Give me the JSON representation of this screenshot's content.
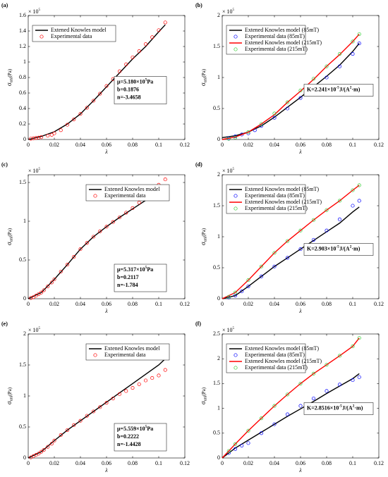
{
  "chart_data": [
    {
      "type": "line",
      "panel": "(a)",
      "xlabel": "λ",
      "ylabel": {
        "main": "σ",
        "sub": "uni",
        "unit": "(Pa)"
      },
      "multiplier": {
        "base": "× 10",
        "exp": "5"
      },
      "xlim": [
        0,
        0.12
      ],
      "xticks": [
        0,
        0.02,
        0.04,
        0.06,
        0.08,
        0.1,
        0.12
      ],
      "ylim": [
        0,
        1.6
      ],
      "yticks": [
        0,
        0.2,
        0.4,
        0.6,
        0.8,
        1,
        1.2,
        1.4,
        1.6
      ],
      "legend": "upper left",
      "annotation_loc": "center right",
      "annotation": [
        [
          {
            "t": "μ=5.180×10"
          },
          {
            "t": "5",
            "sup": true
          },
          {
            "t": "Pa"
          }
        ],
        [
          {
            "t": "b=0.1876"
          }
        ],
        [
          {
            "t": "n=-3.4658"
          }
        ]
      ],
      "series": [
        {
          "name": "Extened Knowles model",
          "style": "line",
          "color": "#000000",
          "x": [
            0,
            0.01,
            0.02,
            0.03,
            0.04,
            0.05,
            0.06,
            0.07,
            0.08,
            0.09,
            0.1,
            0.105
          ],
          "values": [
            0,
            0.04,
            0.1,
            0.2,
            0.33,
            0.5,
            0.68,
            0.86,
            1.04,
            1.2,
            1.39,
            1.48
          ]
        },
        {
          "name": "Experimental data",
          "style": "marker",
          "color": "#ff0000",
          "x": [
            0.002,
            0.004,
            0.006,
            0.008,
            0.01,
            0.015,
            0.018,
            0.02,
            0.025,
            0.03,
            0.035,
            0.04,
            0.045,
            0.05,
            0.055,
            0.06,
            0.065,
            0.07,
            0.075,
            0.08,
            0.085,
            0.09,
            0.095,
            0.1,
            0.105
          ],
          "values": [
            0.01,
            0.015,
            0.02,
            0.025,
            0.03,
            0.05,
            0.06,
            0.08,
            0.12,
            0.19,
            0.26,
            0.33,
            0.41,
            0.5,
            0.59,
            0.69,
            0.78,
            0.88,
            0.97,
            1.06,
            1.14,
            1.23,
            1.32,
            1.41,
            1.51
          ]
        }
      ]
    },
    {
      "type": "line",
      "panel": "(b)",
      "xlabel": "λ",
      "ylabel": {
        "main": "σ",
        "sub": "uni",
        "unit": "(Pa)"
      },
      "multiplier": {
        "base": "× 10",
        "exp": "5"
      },
      "xlim": [
        0,
        0.12
      ],
      "xticks": [
        0,
        0.02,
        0.04,
        0.06,
        0.08,
        0.1,
        0.12
      ],
      "ylim": [
        0,
        2
      ],
      "yticks": [
        0,
        0.5,
        1,
        1.5,
        2
      ],
      "legend": "upper left",
      "annotation_loc": "center right",
      "annotation": [
        [
          {
            "t": "K=2.241×10"
          },
          {
            "t": "-5",
            "sup": true
          },
          {
            "t": "J/(A"
          },
          {
            "t": "2",
            "sup": true
          },
          {
            "t": "·m)"
          }
        ]
      ],
      "series": [
        {
          "name": "Extened Knowles model (85mT)",
          "style": "line",
          "color": "#000000",
          "x": [
            0,
            0.01,
            0.02,
            0.03,
            0.04,
            0.05,
            0.06,
            0.07,
            0.08,
            0.09,
            0.1,
            0.105
          ],
          "values": [
            0.03,
            0.06,
            0.12,
            0.22,
            0.36,
            0.52,
            0.68,
            0.85,
            1.02,
            1.2,
            1.42,
            1.55
          ]
        },
        {
          "name": "Experimental data (85mT)",
          "style": "marker",
          "color": "#0000ff",
          "x": [
            0.005,
            0.01,
            0.015,
            0.02,
            0.025,
            0.03,
            0.04,
            0.05,
            0.06,
            0.07,
            0.08,
            0.09,
            0.1,
            0.105
          ],
          "values": [
            0.02,
            0.05,
            0.08,
            0.1,
            0.15,
            0.22,
            0.35,
            0.5,
            0.67,
            0.84,
            1.0,
            1.18,
            1.38,
            1.55
          ]
        },
        {
          "name": "Extened Knowles model (215mT)",
          "style": "line",
          "color": "#ff0000",
          "x": [
            0,
            0.01,
            0.02,
            0.03,
            0.04,
            0.05,
            0.06,
            0.07,
            0.08,
            0.09,
            0.1,
            0.105
          ],
          "values": [
            0,
            0.04,
            0.12,
            0.25,
            0.4,
            0.6,
            0.78,
            0.97,
            1.18,
            1.37,
            1.58,
            1.7
          ]
        },
        {
          "name": "Experimental data (215mT)",
          "style": "marker",
          "color": "#33cc33",
          "x": [
            0.005,
            0.01,
            0.02,
            0.03,
            0.04,
            0.05,
            0.06,
            0.07,
            0.08,
            0.09,
            0.1,
            0.105
          ],
          "values": [
            0.01,
            0.03,
            0.12,
            0.25,
            0.42,
            0.6,
            0.79,
            0.98,
            1.18,
            1.38,
            1.58,
            1.7
          ]
        }
      ]
    },
    {
      "type": "line",
      "panel": "(c)",
      "xlabel": "λ",
      "ylabel": {
        "main": "σ",
        "sub": "uni",
        "unit": "(Pa)"
      },
      "multiplier": {
        "base": "× 10",
        "exp": "5"
      },
      "xlim": [
        0,
        0.12
      ],
      "xticks": [
        0,
        0.02,
        0.04,
        0.06,
        0.08,
        0.1,
        0.12
      ],
      "ylim": [
        0,
        1.6
      ],
      "yticks": [
        0,
        0.5,
        1,
        1.5
      ],
      "legend": "upper right",
      "annotation_loc": "lower right",
      "annotation": [
        [
          {
            "t": "μ=5.317×10"
          },
          {
            "t": "5",
            "sup": true
          },
          {
            "t": "Pa"
          }
        ],
        [
          {
            "t": "b=0.2117"
          }
        ],
        [
          {
            "t": "n=-1.784"
          }
        ]
      ],
      "series": [
        {
          "name": "Extened Knowles model",
          "style": "line",
          "color": "#000000",
          "x": [
            0,
            0.01,
            0.02,
            0.03,
            0.04,
            0.05,
            0.06,
            0.07,
            0.08,
            0.09,
            0.1,
            0.105
          ],
          "values": [
            0,
            0.08,
            0.25,
            0.44,
            0.64,
            0.8,
            0.93,
            1.05,
            1.16,
            1.27,
            1.38,
            1.43
          ]
        },
        {
          "name": "Experimental data",
          "style": "marker",
          "color": "#ff0000",
          "x": [
            0.002,
            0.004,
            0.006,
            0.008,
            0.01,
            0.012,
            0.015,
            0.018,
            0.02,
            0.025,
            0.03,
            0.035,
            0.04,
            0.045,
            0.05,
            0.055,
            0.06,
            0.065,
            0.07,
            0.075,
            0.08,
            0.085,
            0.09,
            0.095,
            0.1,
            0.105
          ],
          "values": [
            0.01,
            0.02,
            0.04,
            0.06,
            0.08,
            0.11,
            0.16,
            0.21,
            0.25,
            0.35,
            0.44,
            0.54,
            0.64,
            0.72,
            0.8,
            0.87,
            0.93,
            0.99,
            1.05,
            1.11,
            1.17,
            1.24,
            1.32,
            1.4,
            1.47,
            1.54
          ]
        }
      ]
    },
    {
      "type": "line",
      "panel": "(d)",
      "xlabel": "λ",
      "ylabel": {
        "main": "σ",
        "sub": "uni",
        "unit": "(Pa)"
      },
      "multiplier": {
        "base": "× 10",
        "exp": "5"
      },
      "xlim": [
        0,
        0.12
      ],
      "xticks": [
        0,
        0.02,
        0.04,
        0.06,
        0.08,
        0.1,
        0.12
      ],
      "ylim": [
        0,
        2
      ],
      "yticks": [
        0,
        0.5,
        1,
        1.5,
        2
      ],
      "legend": "upper left",
      "annotation_loc": "center right",
      "annotation": [
        [
          {
            "t": "K=2.903×10"
          },
          {
            "t": "-5",
            "sup": true
          },
          {
            "t": "J/(A"
          },
          {
            "t": "2",
            "sup": true
          },
          {
            "t": "·m)"
          }
        ]
      ],
      "series": [
        {
          "name": "Extened Knowles model (85mT)",
          "style": "line",
          "color": "#000000",
          "x": [
            0,
            0.01,
            0.02,
            0.03,
            0.04,
            0.05,
            0.06,
            0.07,
            0.08,
            0.09,
            0.1,
            0.105
          ],
          "values": [
            0,
            0.05,
            0.2,
            0.36,
            0.52,
            0.66,
            0.8,
            0.94,
            1.08,
            1.22,
            1.4,
            1.48
          ]
        },
        {
          "name": "Experimental data (85mT)",
          "style": "marker",
          "color": "#0000ff",
          "x": [
            0.005,
            0.01,
            0.015,
            0.02,
            0.03,
            0.04,
            0.05,
            0.06,
            0.07,
            0.08,
            0.09,
            0.1,
            0.105
          ],
          "values": [
            0.02,
            0.05,
            0.12,
            0.2,
            0.36,
            0.52,
            0.66,
            0.8,
            0.95,
            1.1,
            1.28,
            1.5,
            1.58
          ]
        },
        {
          "name": "Extened Knowles model (215mT)",
          "style": "line",
          "color": "#ff0000",
          "x": [
            0,
            0.01,
            0.02,
            0.03,
            0.04,
            0.05,
            0.06,
            0.07,
            0.08,
            0.09,
            0.1,
            0.105
          ],
          "values": [
            0,
            0.1,
            0.3,
            0.52,
            0.74,
            0.93,
            1.1,
            1.27,
            1.43,
            1.58,
            1.75,
            1.83
          ]
        },
        {
          "name": "Experimental data (215mT)",
          "style": "marker",
          "color": "#33cc33",
          "x": [
            0.005,
            0.01,
            0.02,
            0.03,
            0.04,
            0.05,
            0.06,
            0.07,
            0.08,
            0.09,
            0.1,
            0.105
          ],
          "values": [
            0.03,
            0.1,
            0.3,
            0.52,
            0.74,
            0.93,
            1.1,
            1.27,
            1.43,
            1.58,
            1.75,
            1.83
          ]
        }
      ]
    },
    {
      "type": "line",
      "panel": "(e)",
      "xlabel": "λ",
      "ylabel": {
        "main": "σ",
        "sub": "uni",
        "unit": "(Pa)"
      },
      "multiplier": {
        "base": "× 10",
        "exp": "5"
      },
      "xlim": [
        0,
        0.12
      ],
      "xticks": [
        0,
        0.02,
        0.04,
        0.06,
        0.08,
        0.1,
        0.12
      ],
      "ylim": [
        0,
        2
      ],
      "yticks": [
        0,
        0.5,
        1,
        1.5,
        2
      ],
      "legend": "upper right",
      "annotation_loc": "lower right",
      "annotation": [
        [
          {
            "t": "μ=5.559×10"
          },
          {
            "t": "5",
            "sup": true
          },
          {
            "t": "Pa"
          }
        ],
        [
          {
            "t": "b=0.2222"
          }
        ],
        [
          {
            "t": "n=-1.4428"
          }
        ]
      ],
      "series": [
        {
          "name": "Extened Knowles model",
          "style": "line",
          "color": "#000000",
          "x": [
            0,
            0.01,
            0.02,
            0.03,
            0.04,
            0.05,
            0.06,
            0.07,
            0.08,
            0.09,
            0.1,
            0.105
          ],
          "values": [
            0,
            0.1,
            0.28,
            0.45,
            0.6,
            0.75,
            0.9,
            1.05,
            1.2,
            1.35,
            1.5,
            1.6
          ]
        },
        {
          "name": "Experimental data",
          "style": "marker",
          "color": "#ff0000",
          "x": [
            0.002,
            0.004,
            0.006,
            0.008,
            0.01,
            0.012,
            0.015,
            0.018,
            0.02,
            0.025,
            0.03,
            0.035,
            0.04,
            0.045,
            0.05,
            0.055,
            0.06,
            0.065,
            0.07,
            0.075,
            0.08,
            0.085,
            0.09,
            0.095,
            0.1,
            0.105
          ],
          "values": [
            0.01,
            0.03,
            0.05,
            0.07,
            0.1,
            0.13,
            0.18,
            0.23,
            0.28,
            0.37,
            0.45,
            0.53,
            0.6,
            0.68,
            0.75,
            0.82,
            0.89,
            0.96,
            1.03,
            1.08,
            1.13,
            1.19,
            1.25,
            1.29,
            1.33,
            1.42
          ]
        }
      ]
    },
    {
      "type": "line",
      "panel": "(f)",
      "xlabel": "λ",
      "ylabel": {
        "main": "σ",
        "sub": "uni",
        "unit": "(Pa)"
      },
      "multiplier": {
        "base": "× 10",
        "exp": "5"
      },
      "xlim": [
        0,
        0.12
      ],
      "xticks": [
        0,
        0.02,
        0.04,
        0.06,
        0.08,
        0.1,
        0.12
      ],
      "ylim": [
        0,
        2.5
      ],
      "yticks": [
        0,
        0.5,
        1,
        1.5,
        2,
        2.5
      ],
      "legend": "upper left",
      "annotation_loc": "center right",
      "annotation": [
        [
          {
            "t": "K=2.8516×10"
          },
          {
            "t": "-5",
            "sup": true
          },
          {
            "t": "J/(A"
          },
          {
            "t": "2",
            "sup": true
          },
          {
            "t": "·m)"
          }
        ]
      ],
      "series": [
        {
          "name": "Extened Knowles model (85mT)",
          "style": "line",
          "color": "#000000",
          "x": [
            0,
            0.01,
            0.02,
            0.03,
            0.04,
            0.05,
            0.06,
            0.07,
            0.08,
            0.09,
            0.1,
            0.105
          ],
          "values": [
            0,
            0.2,
            0.36,
            0.52,
            0.68,
            0.84,
            0.99,
            1.14,
            1.3,
            1.45,
            1.6,
            1.7
          ]
        },
        {
          "name": "Experimental data (85mT)",
          "style": "marker",
          "color": "#0000ff",
          "x": [
            0.005,
            0.01,
            0.015,
            0.02,
            0.03,
            0.04,
            0.05,
            0.06,
            0.07,
            0.08,
            0.09,
            0.1,
            0.105
          ],
          "values": [
            0.1,
            0.18,
            0.25,
            0.3,
            0.5,
            0.68,
            0.88,
            1.05,
            1.2,
            1.35,
            1.48,
            1.57,
            1.63
          ]
        },
        {
          "name": "Extened Knowles model (215mT)",
          "style": "line",
          "color": "#ff0000",
          "x": [
            0,
            0.01,
            0.02,
            0.03,
            0.04,
            0.05,
            0.06,
            0.07,
            0.08,
            0.09,
            0.1,
            0.105
          ],
          "values": [
            0,
            0.28,
            0.55,
            0.8,
            1.05,
            1.28,
            1.5,
            1.7,
            1.88,
            2.06,
            2.25,
            2.42
          ]
        },
        {
          "name": "Experimental data (215mT)",
          "style": "marker",
          "color": "#33cc33",
          "x": [
            0.005,
            0.01,
            0.02,
            0.03,
            0.04,
            0.05,
            0.06,
            0.07,
            0.08,
            0.09,
            0.1,
            0.105
          ],
          "values": [
            0.14,
            0.28,
            0.55,
            0.8,
            1.05,
            1.28,
            1.5,
            1.7,
            1.88,
            2.06,
            2.25,
            2.42
          ]
        }
      ]
    }
  ]
}
